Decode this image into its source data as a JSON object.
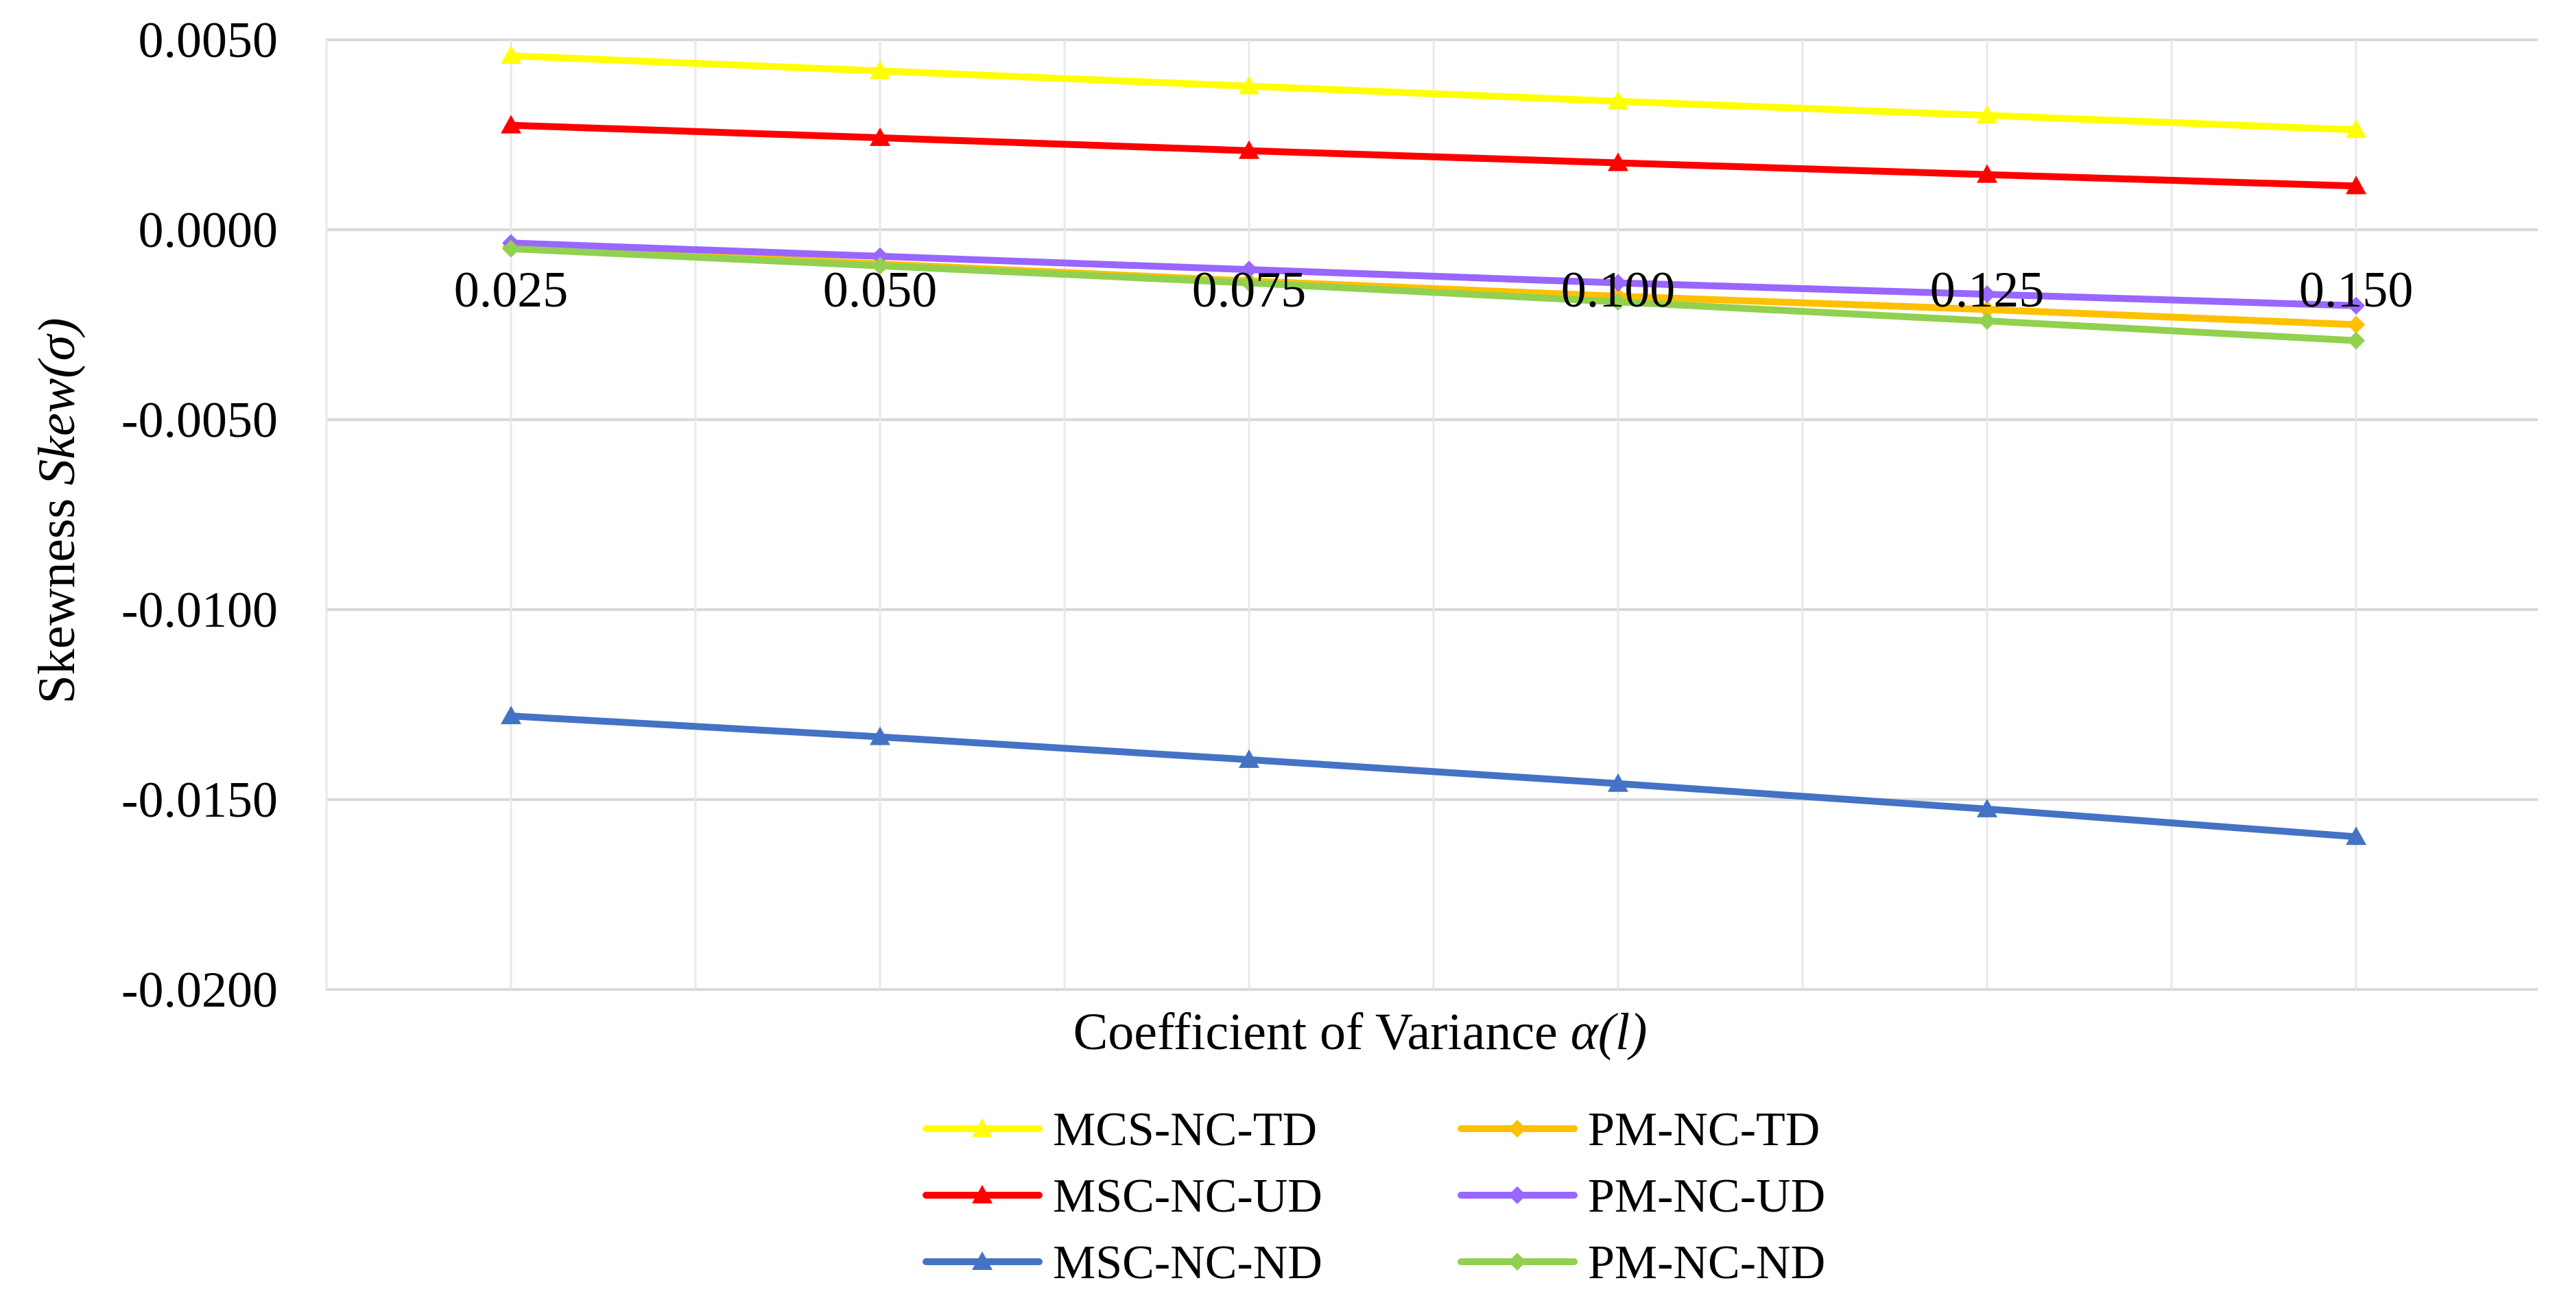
{
  "chart_data": {
    "type": "line",
    "title": "",
    "xlabel_text": "Coefficient of Variance ",
    "xlabel_symbol": "α(l)",
    "ylabel_text": "Skewness ",
    "ylabel_symbol": "Skew(σ)",
    "x": [
      0.025,
      0.05,
      0.075,
      0.1,
      0.125,
      0.15
    ],
    "x_tick_labels": [
      "0.025",
      "0.050",
      "0.075",
      "0.100",
      "0.125",
      "0.150"
    ],
    "ylim": [
      -0.02,
      0.005
    ],
    "y_ticks": [
      0.005,
      0.0,
      -0.005,
      -0.01,
      -0.015,
      -0.02
    ],
    "y_tick_labels": [
      "0.0050",
      "0.0000",
      "-0.0050",
      "-0.0100",
      "-0.0150",
      "-0.0200"
    ],
    "grid": true,
    "legend_position": "bottom",
    "series": [
      {
        "name": "MCS-NC-TD",
        "color": "#FFFF00",
        "marker": "triangle",
        "values": [
          0.00458,
          0.00418,
          0.00378,
          0.00338,
          0.00301,
          0.00263
        ]
      },
      {
        "name": "PM-NC-TD",
        "color": "#FFC000",
        "marker": "diamond",
        "values": [
          -0.00045,
          -0.0009,
          -0.00135,
          -0.00175,
          -0.0021,
          -0.0025
        ]
      },
      {
        "name": "MSC-NC-UD",
        "color": "#FF0000",
        "marker": "triangle",
        "values": [
          0.00275,
          0.00242,
          0.00208,
          0.00176,
          0.00145,
          0.00115
        ]
      },
      {
        "name": "PM-NC-UD",
        "color": "#9966FF",
        "marker": "diamond",
        "values": [
          -0.00035,
          -0.0007,
          -0.00105,
          -0.0014,
          -0.0017,
          -0.002
        ]
      },
      {
        "name": "MSC-NC-ND",
        "color": "#4472C4",
        "marker": "triangle",
        "values": [
          -0.0128,
          -0.01335,
          -0.01395,
          -0.01458,
          -0.01525,
          -0.01598
        ]
      },
      {
        "name": "PM-NC-ND",
        "color": "#92D050",
        "marker": "diamond",
        "values": [
          -0.0005,
          -0.00095,
          -0.0014,
          -0.0019,
          -0.0024,
          -0.00292
        ]
      }
    ]
  }
}
